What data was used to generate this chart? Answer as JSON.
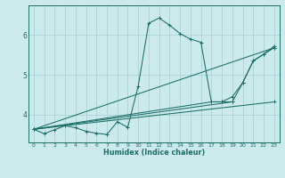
{
  "xlabel": "Humidex (Indice chaleur)",
  "bg_color": "#cce9eb",
  "grid_color": "#a8d4d6",
  "line_color": "#1a6e68",
  "xlim": [
    -0.5,
    23.5
  ],
  "ylim": [
    3.3,
    6.75
  ],
  "xticks": [
    0,
    1,
    2,
    3,
    4,
    5,
    6,
    7,
    8,
    9,
    10,
    11,
    12,
    13,
    14,
    15,
    16,
    17,
    18,
    19,
    20,
    21,
    22,
    23
  ],
  "yticks": [
    4,
    5,
    6
  ],
  "series": [
    {
      "x": [
        0,
        1,
        2,
        3,
        4,
        5,
        6,
        7,
        8,
        9,
        10,
        11,
        12,
        13,
        14,
        15,
        16,
        17,
        18,
        19
      ],
      "y": [
        3.63,
        3.52,
        3.62,
        3.72,
        3.67,
        3.58,
        3.53,
        3.5,
        3.82,
        3.68,
        4.72,
        6.3,
        6.43,
        6.25,
        6.04,
        5.9,
        5.82,
        4.32,
        4.32,
        4.32
      ]
    },
    {
      "x": [
        0,
        23
      ],
      "y": [
        3.63,
        4.32
      ]
    },
    {
      "x": [
        0,
        23
      ],
      "y": [
        3.63,
        5.68
      ]
    },
    {
      "x": [
        0,
        17,
        18,
        19,
        20,
        21,
        22,
        23
      ],
      "y": [
        3.63,
        4.32,
        4.32,
        4.45,
        4.8,
        5.35,
        5.52,
        5.68
      ]
    },
    {
      "x": [
        0,
        19,
        20,
        21,
        22,
        23
      ],
      "y": [
        3.63,
        4.32,
        4.8,
        5.35,
        5.52,
        5.72
      ]
    }
  ]
}
